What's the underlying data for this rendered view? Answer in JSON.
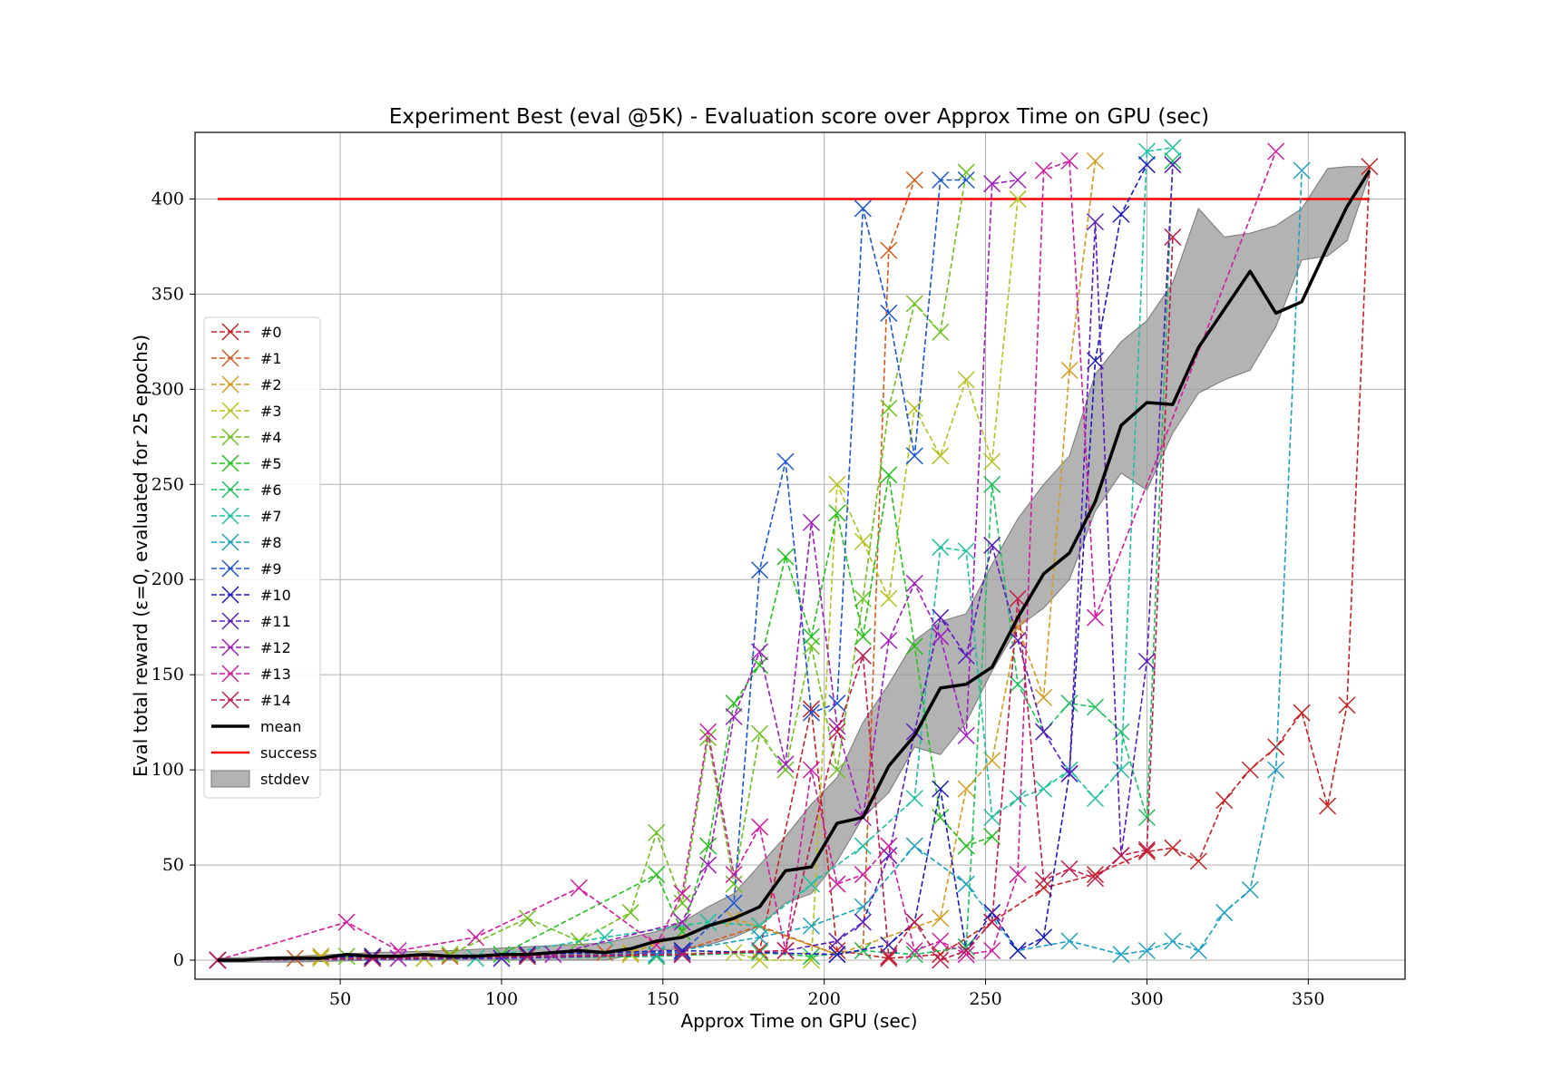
{
  "chart_data": {
    "type": "line",
    "title": "Experiment Best (eval @5K) - Evaluation score over Approx Time on GPU (sec)",
    "xlabel": "Approx Time on GPU (sec)",
    "ylabel": "Eval total reward (ε=0, evaluated for 25 epochs)",
    "xlim": [
      5,
      380
    ],
    "ylim": [
      -10,
      435
    ],
    "xticks": [
      50,
      100,
      150,
      200,
      250,
      300,
      350
    ],
    "yticks": [
      0,
      50,
      100,
      150,
      200,
      250,
      300,
      350,
      400
    ],
    "grid": true,
    "legend_position": "center-left",
    "success_line": {
      "name": "success",
      "y": 400,
      "x_start": 12,
      "x_end": 369,
      "color": "#ff0000"
    },
    "mean": {
      "name": "mean",
      "color": "#000000",
      "x": [
        12,
        20,
        28,
        36,
        44,
        52,
        60,
        68,
        76,
        84,
        92,
        100,
        108,
        116,
        124,
        132,
        140,
        148,
        156,
        164,
        172,
        180,
        188,
        196,
        204,
        212,
        220,
        228,
        236,
        244,
        252,
        260,
        268,
        276,
        284,
        292,
        300,
        308,
        316,
        332,
        340,
        348,
        356,
        362,
        369
      ],
      "y": [
        0,
        0,
        1,
        1,
        1,
        3,
        2,
        2,
        3,
        2,
        2,
        3,
        3,
        4,
        5,
        4,
        6,
        10,
        12,
        18,
        22,
        28,
        47,
        49,
        72,
        75,
        102,
        118,
        143,
        145,
        154,
        180,
        203,
        214,
        241,
        281,
        293,
        292,
        322,
        362,
        340,
        346,
        375,
        396,
        415
      ]
    },
    "stddev": {
      "name": "stddev",
      "color": "#999999",
      "x": [
        12,
        36,
        60,
        84,
        108,
        132,
        148,
        156,
        164,
        172,
        180,
        188,
        196,
        204,
        212,
        220,
        228,
        236,
        244,
        252,
        260,
        268,
        276,
        284,
        292,
        300,
        308,
        316,
        324,
        332,
        340,
        348,
        356,
        362,
        369
      ],
      "upper": [
        1,
        2,
        4,
        5,
        7,
        9,
        15,
        20,
        28,
        35,
        50,
        65,
        82,
        96,
        125,
        145,
        168,
        178,
        182,
        208,
        232,
        250,
        265,
        308,
        325,
        336,
        356,
        395,
        380,
        382,
        386,
        395,
        416,
        417,
        417
      ],
      "lower": [
        -1,
        -1,
        0,
        0,
        0,
        0,
        5,
        6,
        8,
        12,
        18,
        30,
        35,
        52,
        75,
        88,
        112,
        108,
        125,
        152,
        175,
        185,
        200,
        236,
        256,
        247,
        277,
        298,
        305,
        310,
        333,
        368,
        370,
        378,
        413
      ]
    },
    "series": [
      {
        "name": "#0",
        "color": "#cc1f1f",
        "x": [
          12,
          60,
          108,
          156,
          180,
          196,
          204,
          220,
          236,
          252,
          268,
          284,
          300,
          308,
          316,
          324,
          332,
          340,
          348,
          356,
          362,
          369
        ],
        "y": [
          0,
          1,
          2,
          3,
          5,
          132,
          5,
          1,
          3,
          20,
          38,
          45,
          57,
          59,
          52,
          84,
          100,
          112,
          130,
          81,
          134,
          417
        ]
      },
      {
        "name": "#1",
        "color": "#d45a1a",
        "x": [
          12,
          36,
          60,
          84,
          108,
          132,
          156,
          180,
          204,
          212,
          220,
          228
        ],
        "y": [
          0,
          1,
          2,
          2,
          3,
          4,
          5,
          18,
          3,
          5,
          373,
          410
        ]
      },
      {
        "name": "#2",
        "color": "#d49a1a",
        "x": [
          12,
          44,
          76,
          108,
          140,
          172,
          204,
          236,
          244,
          252,
          260,
          268,
          276,
          284
        ],
        "y": [
          0,
          2,
          1,
          3,
          4,
          22,
          3,
          22,
          90,
          105,
          175,
          138,
          310,
          420
        ]
      },
      {
        "name": "#3",
        "color": "#b5c21a",
        "x": [
          12,
          44,
          76,
          108,
          140,
          172,
          180,
          196,
          204,
          212,
          220,
          228,
          236,
          244,
          252,
          260
        ],
        "y": [
          0,
          1,
          1,
          2,
          3,
          4,
          0,
          0,
          250,
          220,
          190,
          290,
          265,
          305,
          262,
          400
        ]
      },
      {
        "name": "#4",
        "color": "#6ac21a",
        "x": [
          12,
          52,
          84,
          108,
          124,
          140,
          148,
          156,
          164,
          172,
          180,
          188,
          196,
          204,
          212,
          220,
          228,
          236,
          244
        ],
        "y": [
          0,
          2,
          3,
          22,
          10,
          25,
          67,
          30,
          117,
          40,
          119,
          100,
          165,
          100,
          190,
          290,
          345,
          330,
          414
        ]
      },
      {
        "name": "#5",
        "color": "#22c21a",
        "x": [
          12,
          60,
          100,
          148,
          156,
          164,
          172,
          180,
          188,
          196,
          204,
          212,
          220,
          228,
          236,
          244,
          252
        ],
        "y": [
          0,
          2,
          3,
          45,
          15,
          60,
          135,
          155,
          212,
          170,
          235,
          170,
          255,
          165,
          75,
          60,
          65
        ]
      },
      {
        "name": "#6",
        "color": "#1ac25a",
        "x": [
          12,
          100,
          148,
          180,
          196,
          212,
          228,
          244,
          252,
          260,
          268,
          276,
          284,
          292,
          300,
          308
        ],
        "y": [
          0,
          1,
          2,
          4,
          2,
          5,
          3,
          7,
          250,
          145,
          120,
          135,
          133,
          120,
          75,
          420
        ]
      },
      {
        "name": "#7",
        "color": "#1ac2a0",
        "x": [
          12,
          92,
          132,
          164,
          180,
          196,
          212,
          228,
          236,
          244,
          252,
          260,
          268,
          276,
          284,
          292,
          300,
          308
        ],
        "y": [
          0,
          1,
          12,
          20,
          18,
          40,
          60,
          85,
          217,
          215,
          75,
          85,
          90,
          100,
          85,
          100,
          425,
          427
        ]
      },
      {
        "name": "#8",
        "color": "#1aa0c2",
        "x": [
          12,
          100,
          148,
          180,
          196,
          212,
          228,
          244,
          260,
          276,
          292,
          300,
          308,
          316,
          324,
          332,
          340,
          348
        ],
        "y": [
          0,
          1,
          3,
          12,
          18,
          28,
          60,
          40,
          5,
          10,
          3,
          5,
          10,
          5,
          25,
          37,
          100,
          415
        ]
      },
      {
        "name": "#9",
        "color": "#1a55d4",
        "x": [
          12,
          60,
          108,
          156,
          172,
          180,
          188,
          196,
          204,
          212,
          220,
          228,
          236,
          244
        ],
        "y": [
          0,
          1,
          2,
          4,
          30,
          205,
          262,
          130,
          135,
          395,
          340,
          265,
          410,
          410
        ]
      },
      {
        "name": "#10",
        "color": "#1a1ac2",
        "x": [
          12,
          60,
          108,
          156,
          204,
          220,
          228,
          236,
          244,
          252,
          260,
          268,
          276,
          284,
          292,
          300
        ],
        "y": [
          0,
          2,
          3,
          5,
          3,
          8,
          20,
          90,
          5,
          25,
          5,
          12,
          98,
          315,
          392,
          418
        ]
      },
      {
        "name": "#11",
        "color": "#5a1ac2",
        "x": [
          12,
          100,
          156,
          188,
          204,
          212,
          220,
          228,
          236,
          244,
          252,
          260,
          268,
          276,
          284,
          292,
          300,
          308
        ],
        "y": [
          0,
          1,
          3,
          5,
          10,
          20,
          55,
          120,
          180,
          160,
          218,
          168,
          120,
          98,
          388,
          55,
          157,
          418
        ]
      },
      {
        "name": "#12",
        "color": "#a01ac2",
        "x": [
          12,
          68,
          116,
          156,
          164,
          172,
          180,
          188,
          196,
          204,
          212,
          220,
          228,
          236,
          244,
          252,
          260
        ],
        "y": [
          0,
          1,
          3,
          20,
          50,
          128,
          162,
          103,
          230,
          123,
          75,
          168,
          198,
          170,
          118,
          408,
          410
        ]
      },
      {
        "name": "#13",
        "color": "#d41aa0",
        "x": [
          12,
          52,
          68,
          92,
          124,
          148,
          156,
          164,
          172,
          180,
          188,
          196,
          204,
          212,
          220,
          228,
          236,
          244,
          252,
          260,
          268,
          276,
          284,
          340
        ],
        "y": [
          0,
          20,
          5,
          12,
          38,
          8,
          35,
          120,
          45,
          70,
          5,
          100,
          40,
          45,
          60,
          5,
          10,
          3,
          5,
          45,
          415,
          420,
          180,
          425
        ]
      },
      {
        "name": "#14",
        "color": "#c21a4a",
        "x": [
          12,
          60,
          108,
          156,
          188,
          204,
          212,
          220,
          228,
          236,
          244,
          252,
          260,
          268,
          276,
          284,
          292,
          300,
          308
        ],
        "y": [
          0,
          1,
          2,
          3,
          5,
          120,
          160,
          2,
          20,
          0,
          5,
          20,
          190,
          42,
          48,
          43,
          55,
          58,
          380
        ]
      }
    ]
  }
}
